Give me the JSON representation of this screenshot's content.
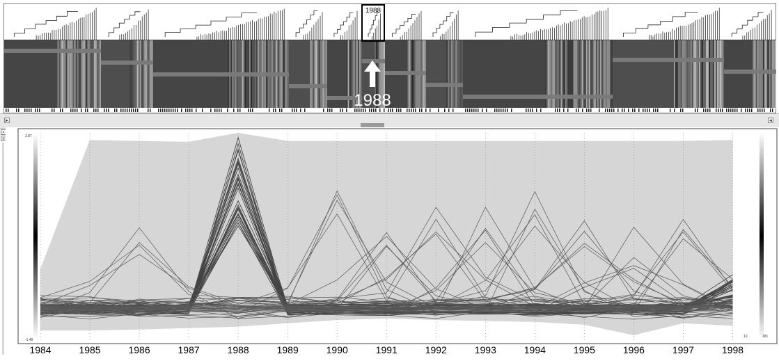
{
  "overview": {
    "selected_year": "1988",
    "highlight_label": "1988"
  },
  "chart_data": {
    "type": "line",
    "x": [
      "1984",
      "1985",
      "1986",
      "1987",
      "1988",
      "1989",
      "1990",
      "1991",
      "1992",
      "1993",
      "1994",
      "1995",
      "1996",
      "1997",
      "1998"
    ],
    "y_axis": {
      "max_label": "2.87",
      "min_label": "-1.49",
      "ylim": [
        -1.49,
        2.87
      ]
    },
    "right_scale_labels": [
      "181",
      "10"
    ],
    "grid": "vertical dotted lines at each year",
    "series_note": "gene-expression profiles; many lines peak at 1988",
    "bundles": {
      "baseline_count": 30,
      "peak_1988_range": [
        0.9,
        2.87
      ],
      "scatter_peaks": [
        {
          "year": "1986",
          "value": 1.2
        },
        {
          "year": "1990",
          "value": 1.8
        },
        {
          "year": "1991",
          "value": 1.1
        },
        {
          "year": "1992",
          "value": 1.45
        },
        {
          "year": "1993",
          "value": 1.3
        },
        {
          "year": "1994",
          "value": 1.7
        },
        {
          "year": "1995",
          "value": 1.2
        },
        {
          "year": "1996",
          "value": 0.9
        },
        {
          "year": "1997",
          "value": 1.4
        }
      ]
    }
  },
  "colors": {
    "heatmap_dark": "#3a3a3a",
    "heatmap_mid": "#5a5a5a",
    "band": "#7a7a7a",
    "envelope": "#d6d6d6",
    "line": "#444444",
    "highlight_box": "#000000"
  }
}
